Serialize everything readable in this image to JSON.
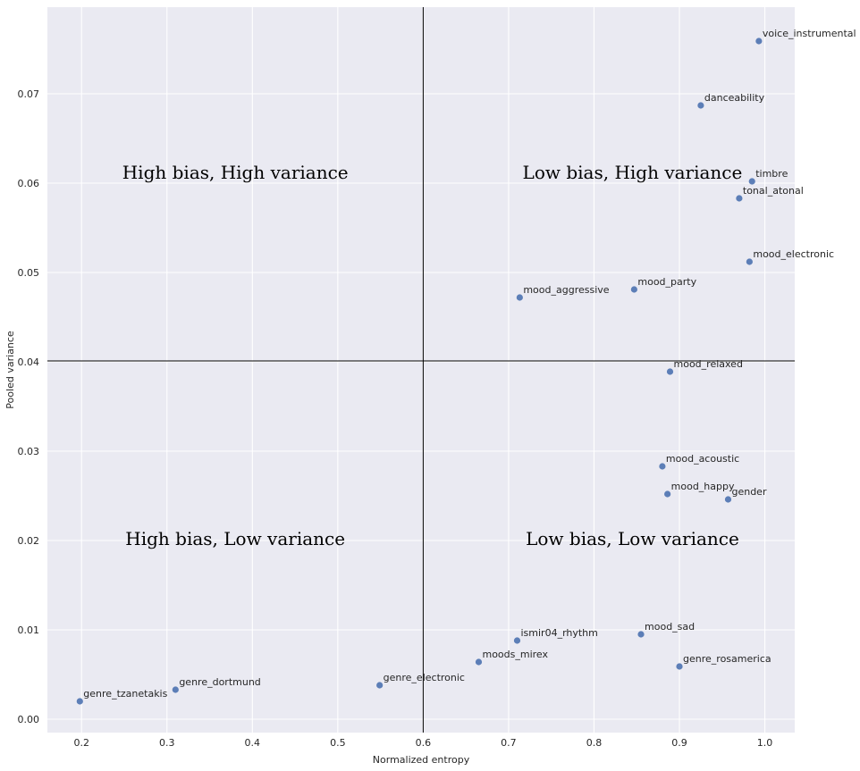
{
  "chart_data": {
    "type": "scatter",
    "xlabel": "Normalized entropy",
    "ylabel": "Pooled variance",
    "xlim": [
      0.16,
      1.035
    ],
    "ylim": [
      -0.0015,
      0.0797
    ],
    "xticks": [
      "0.2",
      "0.3",
      "0.4",
      "0.5",
      "0.6",
      "0.7",
      "0.8",
      "0.9",
      "1.0"
    ],
    "xtick_values": [
      0.2,
      0.3,
      0.4,
      0.5,
      0.6,
      0.7,
      0.8,
      0.9,
      1.0
    ],
    "yticks": [
      "0.00",
      "0.01",
      "0.02",
      "0.03",
      "0.04",
      "0.05",
      "0.06",
      "0.07"
    ],
    "ytick_values": [
      0.0,
      0.01,
      0.02,
      0.03,
      0.04,
      0.05,
      0.06,
      0.07
    ],
    "grid": true,
    "divider_x": 0.6,
    "divider_y": 0.0401,
    "quadrant_labels": [
      {
        "text": "High bias, High variance",
        "x": 0.38,
        "y": 0.0605
      },
      {
        "text": "Low bias, High variance",
        "x": 0.845,
        "y": 0.0605
      },
      {
        "text": "High bias, Low variance",
        "x": 0.38,
        "y": 0.0195
      },
      {
        "text": "Low bias, Low variance",
        "x": 0.845,
        "y": 0.0195
      }
    ],
    "points": [
      {
        "name": "voice_instrumental",
        "x": 0.993,
        "y": 0.0759
      },
      {
        "name": "danceability",
        "x": 0.925,
        "y": 0.0687
      },
      {
        "name": "timbre",
        "x": 0.985,
        "y": 0.0602
      },
      {
        "name": "tonal_atonal",
        "x": 0.97,
        "y": 0.0583
      },
      {
        "name": "mood_electronic",
        "x": 0.982,
        "y": 0.0512
      },
      {
        "name": "mood_party",
        "x": 0.847,
        "y": 0.0481
      },
      {
        "name": "mood_aggressive",
        "x": 0.713,
        "y": 0.0472
      },
      {
        "name": "mood_relaxed",
        "x": 0.889,
        "y": 0.0389
      },
      {
        "name": "mood_acoustic",
        "x": 0.88,
        "y": 0.0283
      },
      {
        "name": "mood_happy",
        "x": 0.886,
        "y": 0.0252
      },
      {
        "name": "gender",
        "x": 0.957,
        "y": 0.0246
      },
      {
        "name": "mood_sad",
        "x": 0.855,
        "y": 0.0095
      },
      {
        "name": "ismir04_rhythm",
        "x": 0.71,
        "y": 0.0088
      },
      {
        "name": "moods_mirex",
        "x": 0.665,
        "y": 0.0064
      },
      {
        "name": "genre_rosamerica",
        "x": 0.9,
        "y": 0.0059
      },
      {
        "name": "genre_electronic",
        "x": 0.549,
        "y": 0.0038
      },
      {
        "name": "genre_dortmund",
        "x": 0.31,
        "y": 0.0033
      },
      {
        "name": "genre_tzanetakis",
        "x": 0.198,
        "y": 0.002
      }
    ],
    "point_color": "#4c72b0",
    "background_color": "#eaeaf2",
    "grid_color": "#ffffff",
    "divider_color": "#000000"
  }
}
